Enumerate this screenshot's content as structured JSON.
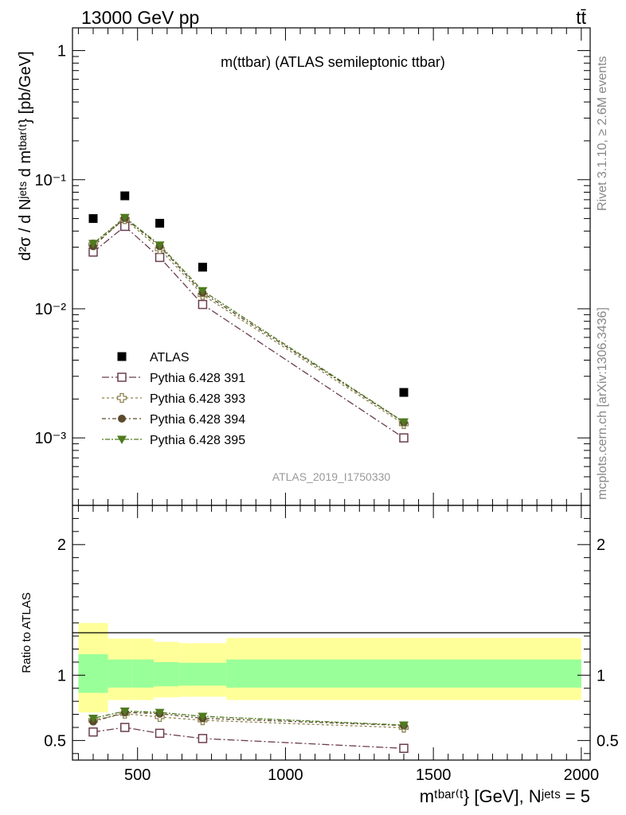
{
  "header": {
    "left": "13000 GeV pp",
    "right": "tt̄"
  },
  "side": {
    "rivet": "Rivet 3.1.10, ≥ 2.6M events",
    "mcplots": "mcplots.cern.ch [arXiv:1306.3436]"
  },
  "chart_data": [
    {
      "type": "scatter",
      "title": "m(ttbar) (ATLAS semileptonic ttbar)",
      "watermark": "ATLAS_2019_I1750330",
      "ylabel": "d²σ / d Nʲᵉᵗˢ d mᵗᵇᵃʳ⁽ᵗ} [pb/GeV]",
      "yscale": "log",
      "ylim": [
        0.0003,
        1.5
      ],
      "xlim": [
        280,
        2030
      ],
      "yticks": [
        "10⁻³",
        "10⁻²",
        "10⁻¹",
        "1"
      ],
      "legend_placement": "lower-left",
      "x": [
        350,
        457,
        575,
        720,
        1400
      ],
      "series": [
        {
          "name": "ATLAS",
          "marker": "square-filled",
          "color": "#000000",
          "values": [
            0.05,
            0.075,
            0.046,
            0.021,
            0.00225
          ]
        },
        {
          "name": "Pythia 6.428 391",
          "marker": "square-open",
          "color": "#6b3d4f",
          "values": [
            0.0275,
            0.0435,
            0.025,
            0.0108,
            0.001
          ]
        },
        {
          "name": "Pythia 6.428 393",
          "marker": "plus-open",
          "color": "#8f8451",
          "values": [
            0.0315,
            0.0495,
            0.029,
            0.0128,
            0.00128
          ]
        },
        {
          "name": "Pythia 6.428 394",
          "marker": "circle-filled",
          "color": "#5b4a2c",
          "values": [
            0.0305,
            0.0505,
            0.0305,
            0.0133,
            0.00132
          ]
        },
        {
          "name": "Pythia 6.428 395",
          "marker": "triangle-down-filled",
          "color": "#4f7a1f",
          "values": [
            0.032,
            0.051,
            0.0312,
            0.0138,
            0.00133
          ]
        }
      ]
    },
    {
      "type": "scatter",
      "ylabel": "Ratio to ATLAS",
      "xlabel": "mᵗᵇᵃʳ⁽ᵗ} [GeV], Nʲᵉᵗˢ = 5",
      "ylim": [
        0.35,
        2.3
      ],
      "xticks": [
        "500",
        "1000",
        "1500",
        "2000"
      ],
      "yticks": [
        "0.5",
        "1",
        "2"
      ],
      "bands": [
        {
          "x": [
            300,
            400
          ],
          "inner": [
            0.865,
            1.16
          ],
          "outer": [
            0.715,
            1.4
          ]
        },
        {
          "x": [
            400,
            480
          ],
          "inner": [
            0.905,
            1.12
          ],
          "outer": [
            0.81,
            1.28
          ]
        },
        {
          "x": [
            480,
            555
          ],
          "inner": [
            0.905,
            1.12
          ],
          "outer": [
            0.81,
            1.28
          ]
        },
        {
          "x": [
            555,
            640
          ],
          "inner": [
            0.915,
            1.1
          ],
          "outer": [
            0.83,
            1.255
          ]
        },
        {
          "x": [
            640,
            800
          ],
          "inner": [
            0.92,
            1.095
          ],
          "outer": [
            0.835,
            1.245
          ]
        },
        {
          "x": [
            800,
            2000
          ],
          "inner": [
            0.905,
            1.12
          ],
          "outer": [
            0.81,
            1.285
          ]
        }
      ],
      "x": [
        350,
        457,
        575,
        720,
        1400
      ],
      "series": [
        {
          "name": "Pythia 6.428 391",
          "marker": "square-open",
          "color": "#6b3d4f",
          "values": [
            0.565,
            0.6,
            0.555,
            0.515,
            0.44
          ]
        },
        {
          "name": "Pythia 6.428 393",
          "marker": "plus-open",
          "color": "#8f8451",
          "values": [
            0.655,
            0.705,
            0.68,
            0.655,
            0.598
          ]
        },
        {
          "name": "Pythia 6.428 394",
          "marker": "circle-filled",
          "color": "#5b4a2c",
          "values": [
            0.645,
            0.715,
            0.705,
            0.67,
            0.615
          ]
        },
        {
          "name": "Pythia 6.428 395",
          "marker": "triangle-down-filled",
          "color": "#4f7a1f",
          "values": [
            0.67,
            0.725,
            0.715,
            0.685,
            0.618
          ]
        }
      ]
    }
  ]
}
